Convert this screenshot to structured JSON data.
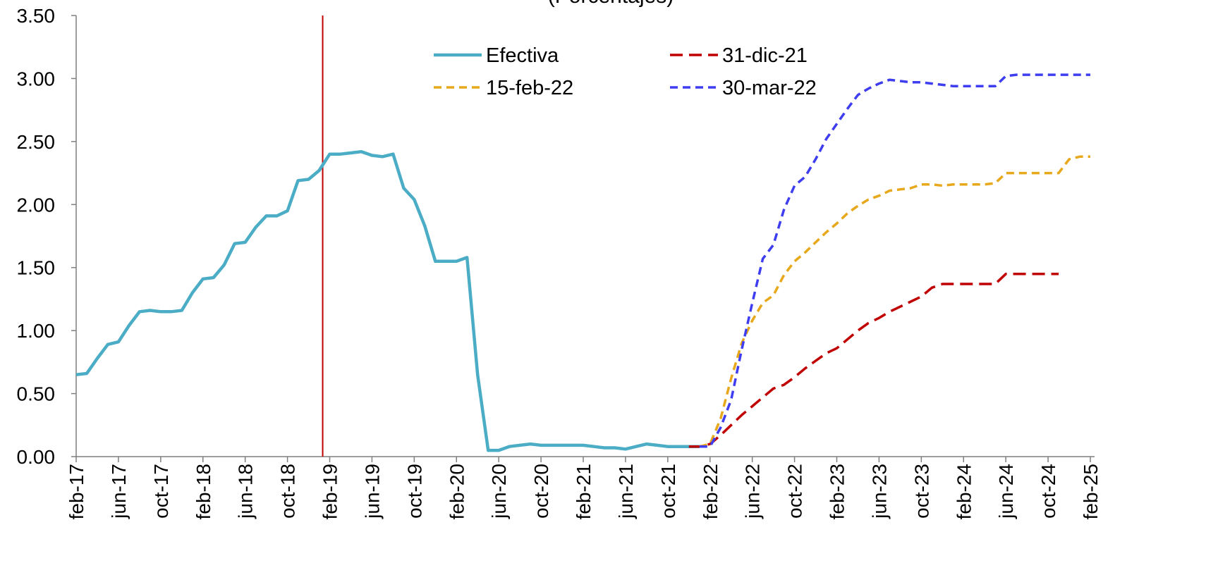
{
  "chart_data": {
    "type": "line",
    "title": "(Porcentajes)",
    "xlabel": "",
    "ylabel": "",
    "ylim": [
      0,
      3.5
    ],
    "y_ticks": [
      "0.00",
      "0.50",
      "1.00",
      "1.50",
      "2.00",
      "2.50",
      "3.00",
      "3.50"
    ],
    "x_start": "2017-02",
    "x_ticks": [
      {
        "label": "feb-17",
        "date": "2017-02"
      },
      {
        "label": "jun-17",
        "date": "2017-06"
      },
      {
        "label": "oct-17",
        "date": "2017-10"
      },
      {
        "label": "feb-18",
        "date": "2018-02"
      },
      {
        "label": "jun-18",
        "date": "2018-06"
      },
      {
        "label": "oct-18",
        "date": "2018-10"
      },
      {
        "label": "feb-19",
        "date": "2019-02"
      },
      {
        "label": "jun-19",
        "date": "2019-06"
      },
      {
        "label": "oct-19",
        "date": "2019-10"
      },
      {
        "label": "feb-20",
        "date": "2020-02"
      },
      {
        "label": "jun-20",
        "date": "2020-06"
      },
      {
        "label": "oct-20",
        "date": "2020-10"
      },
      {
        "label": "feb-21",
        "date": "2021-02"
      },
      {
        "label": "jun-21",
        "date": "2021-06"
      },
      {
        "label": "oct-21",
        "date": "2021-10"
      },
      {
        "label": "feb-22",
        "date": "2022-02"
      },
      {
        "label": "jun-22",
        "date": "2022-06"
      },
      {
        "label": "oct-22",
        "date": "2022-10"
      },
      {
        "label": "feb-23",
        "date": "2023-02"
      },
      {
        "label": "jun-23",
        "date": "2023-06"
      },
      {
        "label": "oct-23",
        "date": "2023-10"
      },
      {
        "label": "feb-24",
        "date": "2024-02"
      },
      {
        "label": "jun-24",
        "date": "2024-06"
      },
      {
        "label": "oct-24",
        "date": "2024-10"
      },
      {
        "label": "feb-25",
        "date": "2025-02"
      }
    ],
    "vertical_marker": {
      "x": "2019-01",
      "color": "#c00000"
    },
    "legend": {
      "placement": "top-center",
      "columns": 2
    },
    "series": [
      {
        "name": "Efectiva",
        "color": "#4bacc6",
        "dash": "solid",
        "points": [
          [
            "2017-02",
            0.65
          ],
          [
            "2017-03",
            0.66
          ],
          [
            "2017-04",
            0.78
          ],
          [
            "2017-05",
            0.89
          ],
          [
            "2017-06",
            0.91
          ],
          [
            "2017-07",
            1.04
          ],
          [
            "2017-08",
            1.15
          ],
          [
            "2017-09",
            1.16
          ],
          [
            "2017-10",
            1.15
          ],
          [
            "2017-11",
            1.15
          ],
          [
            "2017-12",
            1.16
          ],
          [
            "2018-01",
            1.3
          ],
          [
            "2018-02",
            1.41
          ],
          [
            "2018-03",
            1.42
          ],
          [
            "2018-04",
            1.52
          ],
          [
            "2018-05",
            1.69
          ],
          [
            "2018-06",
            1.7
          ],
          [
            "2018-07",
            1.82
          ],
          [
            "2018-08",
            1.91
          ],
          [
            "2018-09",
            1.91
          ],
          [
            "2018-10",
            1.95
          ],
          [
            "2018-11",
            2.19
          ],
          [
            "2018-12",
            2.2
          ],
          [
            "2019-01",
            2.27
          ],
          [
            "2019-02",
            2.4
          ],
          [
            "2019-03",
            2.4
          ],
          [
            "2019-04",
            2.41
          ],
          [
            "2019-05",
            2.42
          ],
          [
            "2019-06",
            2.39
          ],
          [
            "2019-07",
            2.38
          ],
          [
            "2019-08",
            2.4
          ],
          [
            "2019-09",
            2.13
          ],
          [
            "2019-10",
            2.04
          ],
          [
            "2019-11",
            1.83
          ],
          [
            "2019-12",
            1.55
          ],
          [
            "2020-01",
            1.55
          ],
          [
            "2020-02",
            1.55
          ],
          [
            "2020-03",
            1.58
          ],
          [
            "2020-04",
            0.65
          ],
          [
            "2020-05",
            0.05
          ],
          [
            "2020-06",
            0.05
          ],
          [
            "2020-07",
            0.08
          ],
          [
            "2020-08",
            0.09
          ],
          [
            "2020-09",
            0.1
          ],
          [
            "2020-10",
            0.09
          ],
          [
            "2020-11",
            0.09
          ],
          [
            "2020-12",
            0.09
          ],
          [
            "2021-01",
            0.09
          ],
          [
            "2021-02",
            0.09
          ],
          [
            "2021-03",
            0.08
          ],
          [
            "2021-04",
            0.07
          ],
          [
            "2021-05",
            0.07
          ],
          [
            "2021-06",
            0.06
          ],
          [
            "2021-07",
            0.08
          ],
          [
            "2021-08",
            0.1
          ],
          [
            "2021-09",
            0.09
          ],
          [
            "2021-10",
            0.08
          ],
          [
            "2021-11",
            0.08
          ],
          [
            "2021-12",
            0.08
          ],
          [
            "2022-01",
            0.08
          ]
        ]
      },
      {
        "name": "31-dic-21",
        "color": "#c00000",
        "dash": "long",
        "points": [
          [
            "2021-12",
            0.08
          ],
          [
            "2022-01",
            0.08
          ],
          [
            "2022-02",
            0.1
          ],
          [
            "2022-03",
            0.17
          ],
          [
            "2022-04",
            0.25
          ],
          [
            "2022-05",
            0.33
          ],
          [
            "2022-06",
            0.4
          ],
          [
            "2022-07",
            0.47
          ],
          [
            "2022-08",
            0.54
          ],
          [
            "2022-09",
            0.57
          ],
          [
            "2022-10",
            0.63
          ],
          [
            "2022-11",
            0.7
          ],
          [
            "2022-12",
            0.76
          ],
          [
            "2023-01",
            0.82
          ],
          [
            "2023-02",
            0.86
          ],
          [
            "2023-03",
            0.93
          ],
          [
            "2023-04",
            1.0
          ],
          [
            "2023-05",
            1.06
          ],
          [
            "2023-06",
            1.1
          ],
          [
            "2023-07",
            1.15
          ],
          [
            "2023-08",
            1.19
          ],
          [
            "2023-09",
            1.23
          ],
          [
            "2023-10",
            1.27
          ],
          [
            "2023-11",
            1.34
          ],
          [
            "2023-12",
            1.37
          ],
          [
            "2024-01",
            1.37
          ],
          [
            "2024-02",
            1.37
          ],
          [
            "2024-03",
            1.37
          ],
          [
            "2024-04",
            1.37
          ],
          [
            "2024-05",
            1.37
          ],
          [
            "2024-06",
            1.45
          ],
          [
            "2024-07",
            1.45
          ],
          [
            "2024-08",
            1.45
          ],
          [
            "2024-09",
            1.45
          ],
          [
            "2024-10",
            1.45
          ],
          [
            "2024-11",
            1.45
          ]
        ]
      },
      {
        "name": "15-feb-22",
        "color": "#e7a81b",
        "dash": "short",
        "points": [
          [
            "2022-01",
            0.08
          ],
          [
            "2022-02",
            0.1
          ],
          [
            "2022-03",
            0.3
          ],
          [
            "2022-04",
            0.62
          ],
          [
            "2022-05",
            0.9
          ],
          [
            "2022-06",
            1.08
          ],
          [
            "2022-07",
            1.22
          ],
          [
            "2022-08",
            1.28
          ],
          [
            "2022-09",
            1.44
          ],
          [
            "2022-10",
            1.55
          ],
          [
            "2022-11",
            1.62
          ],
          [
            "2022-12",
            1.7
          ],
          [
            "2023-01",
            1.78
          ],
          [
            "2023-02",
            1.85
          ],
          [
            "2023-03",
            1.93
          ],
          [
            "2023-04",
            1.99
          ],
          [
            "2023-05",
            2.04
          ],
          [
            "2023-06",
            2.07
          ],
          [
            "2023-07",
            2.11
          ],
          [
            "2023-08",
            2.12
          ],
          [
            "2023-09",
            2.13
          ],
          [
            "2023-10",
            2.16
          ],
          [
            "2023-11",
            2.16
          ],
          [
            "2023-12",
            2.15
          ],
          [
            "2024-01",
            2.16
          ],
          [
            "2024-02",
            2.16
          ],
          [
            "2024-03",
            2.16
          ],
          [
            "2024-04",
            2.16
          ],
          [
            "2024-05",
            2.17
          ],
          [
            "2024-06",
            2.25
          ],
          [
            "2024-07",
            2.25
          ],
          [
            "2024-08",
            2.25
          ],
          [
            "2024-09",
            2.25
          ],
          [
            "2024-10",
            2.25
          ],
          [
            "2024-11",
            2.25
          ],
          [
            "2024-12",
            2.36
          ],
          [
            "2025-01",
            2.38
          ],
          [
            "2025-02",
            2.38
          ]
        ]
      },
      {
        "name": "30-mar-22",
        "color": "#3e3ef0",
        "dash": "short",
        "points": [
          [
            "2022-01",
            0.08
          ],
          [
            "2022-02",
            0.08
          ],
          [
            "2022-03",
            0.23
          ],
          [
            "2022-04",
            0.45
          ],
          [
            "2022-05",
            0.85
          ],
          [
            "2022-06",
            1.22
          ],
          [
            "2022-07",
            1.57
          ],
          [
            "2022-08",
            1.68
          ],
          [
            "2022-09",
            1.96
          ],
          [
            "2022-10",
            2.15
          ],
          [
            "2022-11",
            2.22
          ],
          [
            "2022-12",
            2.36
          ],
          [
            "2023-01",
            2.52
          ],
          [
            "2023-02",
            2.64
          ],
          [
            "2023-03",
            2.76
          ],
          [
            "2023-04",
            2.87
          ],
          [
            "2023-05",
            2.92
          ],
          [
            "2023-06",
            2.96
          ],
          [
            "2023-07",
            2.99
          ],
          [
            "2023-08",
            2.98
          ],
          [
            "2023-09",
            2.97
          ],
          [
            "2023-10",
            2.97
          ],
          [
            "2023-11",
            2.96
          ],
          [
            "2023-12",
            2.95
          ],
          [
            "2024-01",
            2.94
          ],
          [
            "2024-02",
            2.94
          ],
          [
            "2024-03",
            2.94
          ],
          [
            "2024-04",
            2.94
          ],
          [
            "2024-05",
            2.94
          ],
          [
            "2024-06",
            3.02
          ],
          [
            "2024-07",
            3.03
          ],
          [
            "2024-08",
            3.03
          ],
          [
            "2024-09",
            3.03
          ],
          [
            "2024-10",
            3.03
          ],
          [
            "2024-11",
            3.03
          ],
          [
            "2024-12",
            3.03
          ],
          [
            "2025-01",
            3.03
          ],
          [
            "2025-02",
            3.03
          ]
        ]
      }
    ]
  }
}
